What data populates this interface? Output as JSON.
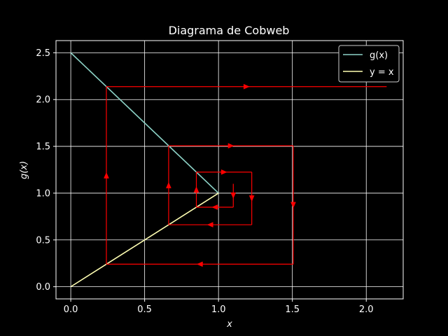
{
  "chart_data": {
    "type": "line",
    "title": "Diagrama de Cobweb",
    "xlabel": "x",
    "ylabel": "g(x)",
    "xlim": [
      -0.1,
      2.25
    ],
    "ylim": [
      -0.13,
      2.63
    ],
    "xticks": [
      0.0,
      0.5,
      1.0,
      1.5,
      2.0
    ],
    "xtick_labels": [
      "0.0",
      "0.5",
      "1.0",
      "1.5",
      "2.0"
    ],
    "yticks": [
      0.0,
      0.5,
      1.0,
      1.5,
      2.0,
      2.5
    ],
    "ytick_labels": [
      "0.0",
      "0.5",
      "1.0",
      "1.5",
      "2.0",
      "2.5"
    ],
    "grid": true,
    "legend_position": "top-right",
    "colors": {
      "background": "#000000",
      "grid": "#ffffff",
      "gx": "#8dd3c7",
      "identity": "#ffffb3",
      "cobweb": "#ff0000"
    },
    "series": [
      {
        "name": "g(x)",
        "legend_label": "g(x)",
        "color": "#8dd3c7",
        "x": [
          0.0,
          1.0
        ],
        "y": [
          2.5,
          1.0
        ]
      },
      {
        "name": "y = x",
        "legend_label": "y = x",
        "color": "#ffffb3",
        "x": [
          0.0,
          1.0
        ],
        "y": [
          0.0,
          1.0
        ]
      }
    ],
    "cobweb": {
      "color": "#ff0000",
      "start_line": {
        "x": [
          1.1,
          1.1
        ],
        "y": [
          1.1,
          0.85
        ]
      },
      "segments": [
        {
          "x": [
            1.1,
            0.85
          ],
          "y": [
            0.85,
            0.85
          ]
        },
        {
          "x": [
            0.85,
            0.85
          ],
          "y": [
            0.85,
            1.225
          ]
        },
        {
          "x": [
            0.85,
            1.225
          ],
          "y": [
            1.225,
            1.225
          ]
        },
        {
          "x": [
            1.225,
            1.225
          ],
          "y": [
            1.225,
            0.6625
          ]
        },
        {
          "x": [
            1.225,
            0.6625
          ],
          "y": [
            0.6625,
            0.6625
          ]
        },
        {
          "x": [
            0.6625,
            0.6625
          ],
          "y": [
            0.6625,
            1.506
          ]
        },
        {
          "x": [
            0.6625,
            1.506
          ],
          "y": [
            1.506,
            1.506
          ]
        },
        {
          "x": [
            1.506,
            1.506
          ],
          "y": [
            1.506,
            0.241
          ]
        },
        {
          "x": [
            1.506,
            0.241
          ],
          "y": [
            0.241,
            0.241
          ]
        },
        {
          "x": [
            0.241,
            0.241
          ],
          "y": [
            0.241,
            2.138
          ]
        },
        {
          "x": [
            0.241,
            2.138
          ],
          "y": [
            2.138,
            2.138
          ]
        }
      ]
    }
  }
}
